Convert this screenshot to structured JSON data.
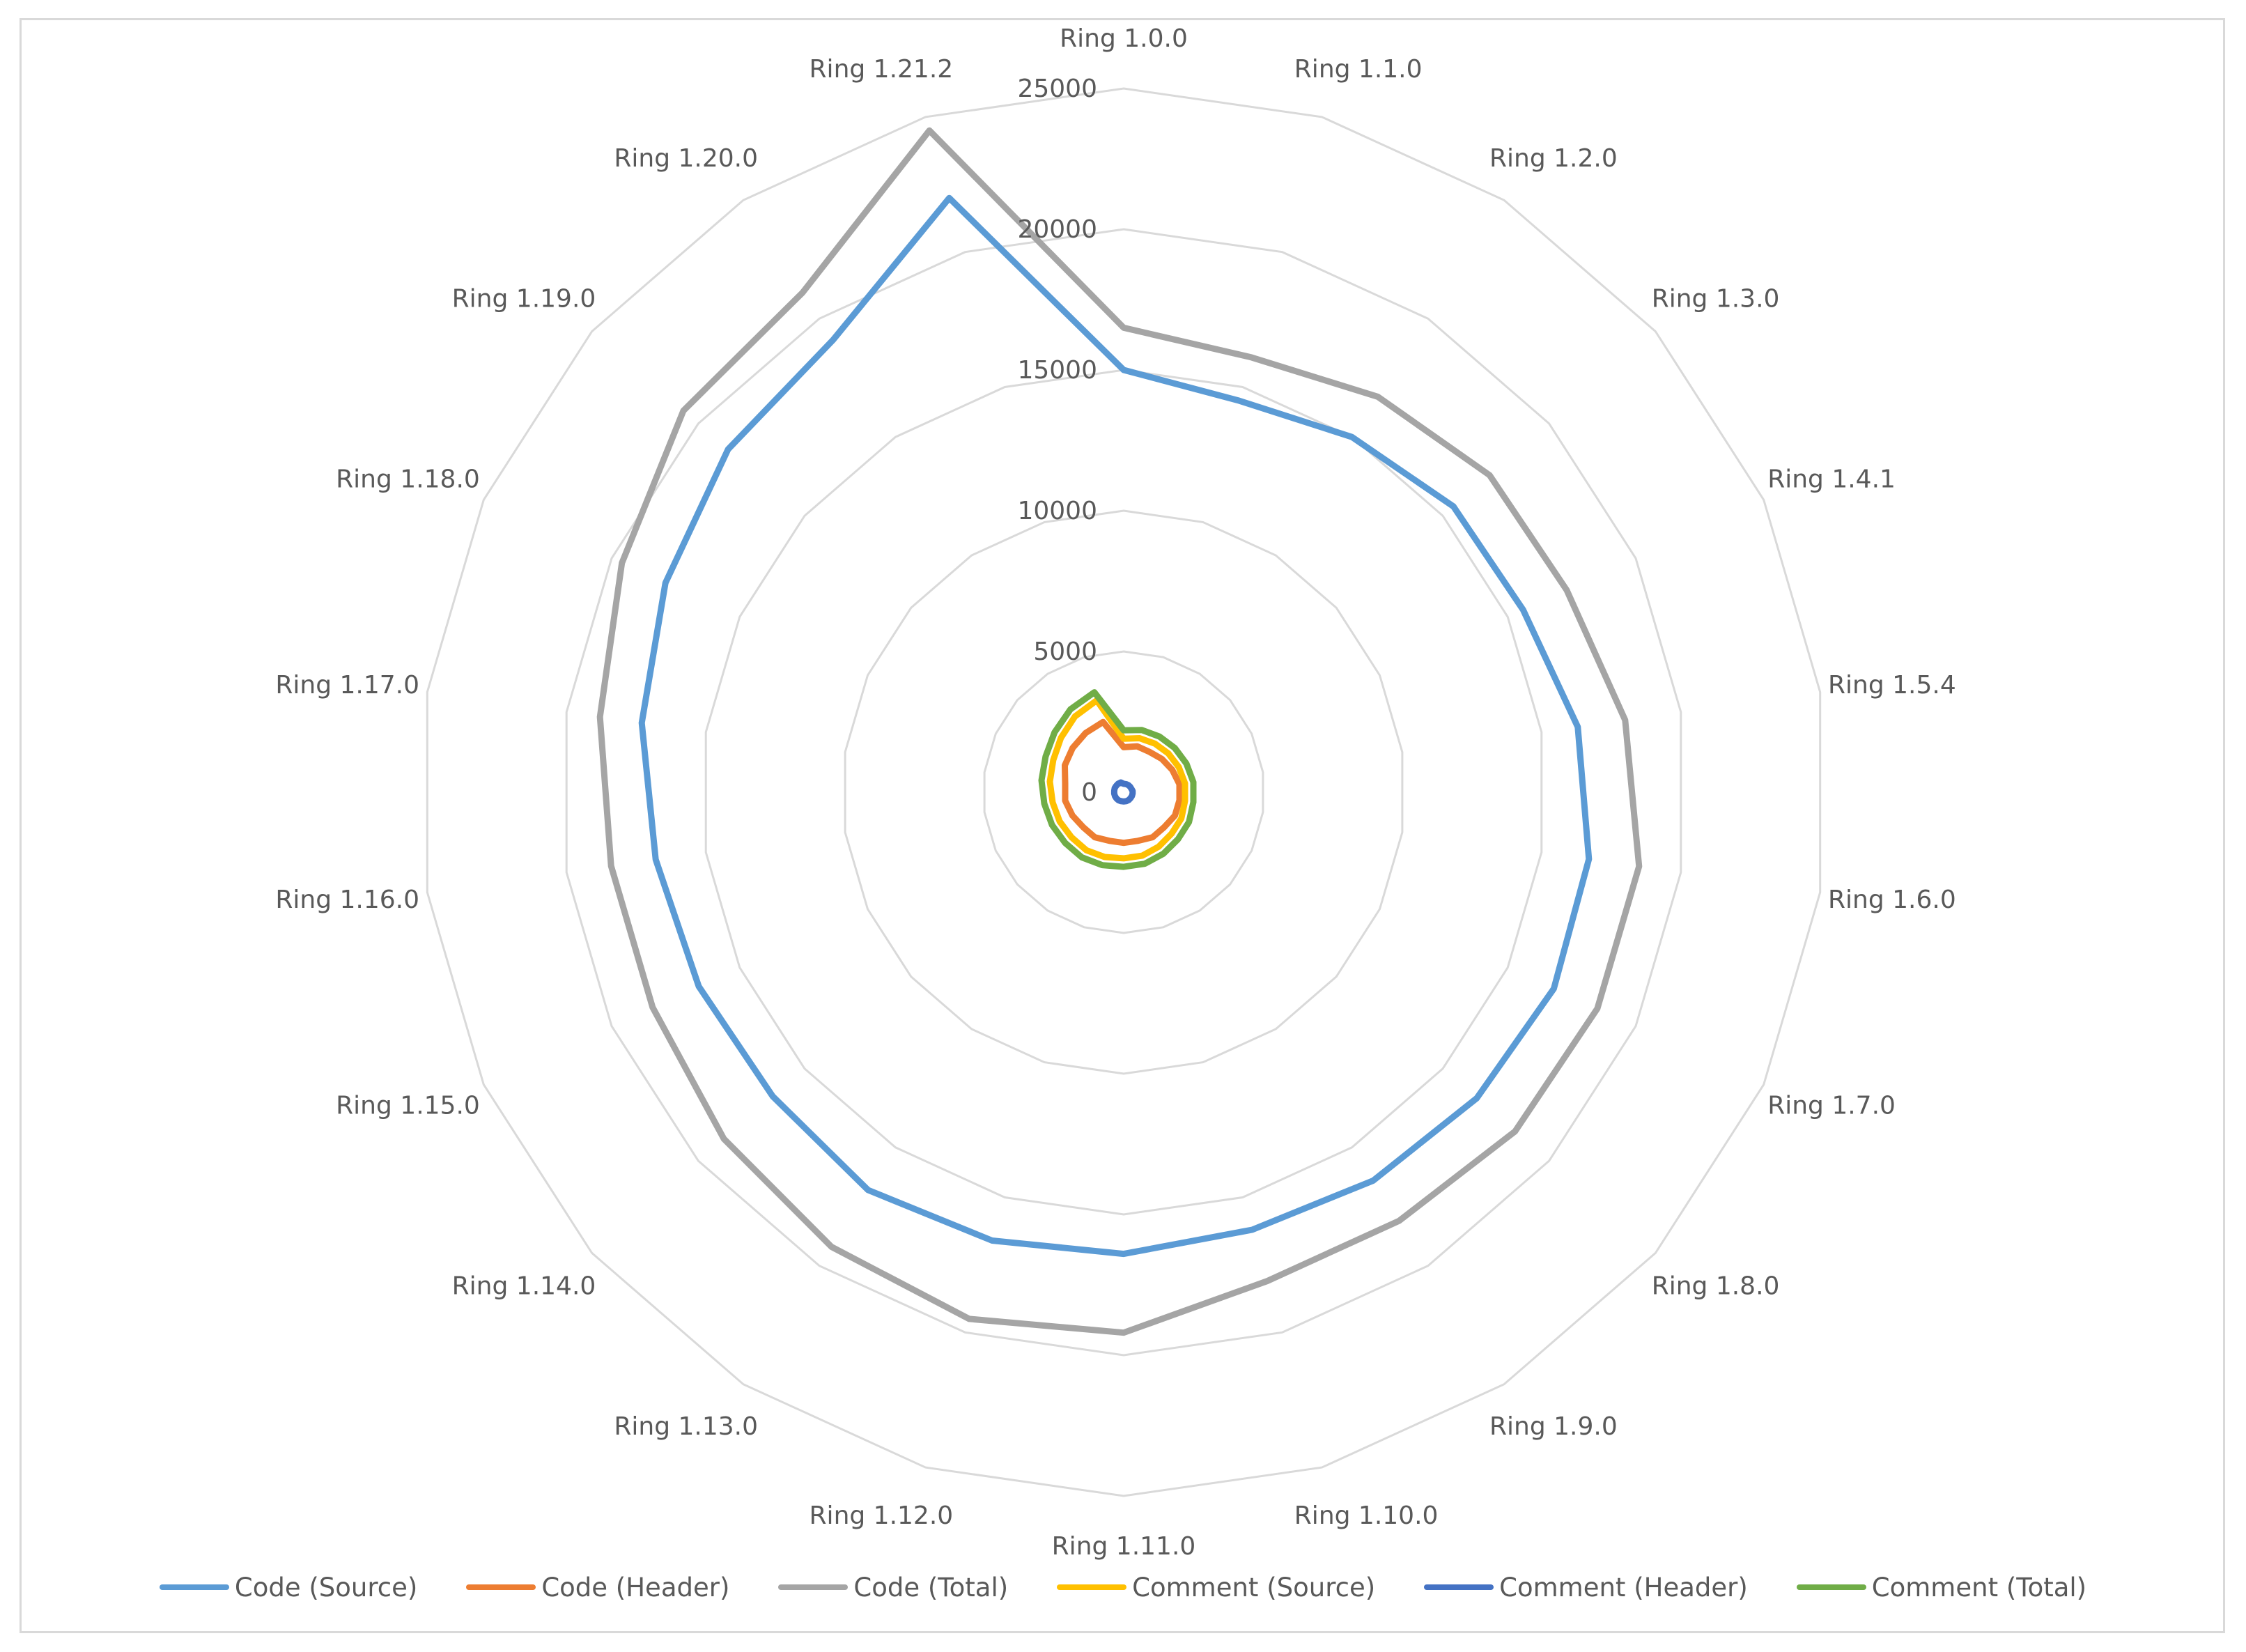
{
  "chart_data": {
    "type": "radar",
    "categories": [
      "Ring 1.0.0",
      "Ring 1.1.0",
      "Ring 1.2.0",
      "Ring 1.3.0",
      "Ring 1.4.1",
      "Ring 1.5.4",
      "Ring 1.6.0",
      "Ring 1.7.0",
      "Ring 1.8.0",
      "Ring 1.9.0",
      "Ring 1.10.0",
      "Ring 1.11.0",
      "Ring 1.12.0",
      "Ring 1.13.0",
      "Ring 1.14.0",
      "Ring 1.15.0",
      "Ring 1.16.0",
      "Ring 1.17.0",
      "Ring 1.18.0",
      "Ring 1.19.0",
      "Ring 1.20.0",
      "Ring 1.21.2"
    ],
    "r_ticks": [
      0,
      5000,
      10000,
      15000,
      20000,
      25000
    ],
    "rlim": [
      0,
      25000
    ],
    "grid": true,
    "legend_position": "bottom",
    "series": [
      {
        "name": "Code (Source)",
        "color": "#5b9bd5",
        "values": [
          15000,
          14500,
          15000,
          15500,
          15600,
          16300,
          16700,
          16800,
          16600,
          16400,
          16200,
          16400,
          16600,
          16800,
          16500,
          16600,
          16800,
          17300,
          17900,
          18600,
          19100,
          22000
        ]
      },
      {
        "name": "Code (Header)",
        "color": "#ed7d31",
        "values": [
          1600,
          1700,
          1700,
          1800,
          1900,
          2000,
          2000,
          2000,
          1900,
          1900,
          1800,
          1800,
          1800,
          1900,
          1900,
          2000,
          2100,
          2100,
          2300,
          2400,
          2500,
          2600
        ]
      },
      {
        "name": "Code (Total)",
        "color": "#a5a5a5",
        "values": [
          16500,
          16100,
          16700,
          17200,
          17300,
          18000,
          18500,
          18500,
          18400,
          18100,
          18100,
          19200,
          19500,
          19200,
          18800,
          18400,
          18400,
          18800,
          19600,
          20700,
          21100,
          24500
        ]
      },
      {
        "name": "Comment (Source)",
        "color": "#ffc000",
        "values": [
          1900,
          2000,
          2050,
          2100,
          2150,
          2200,
          2200,
          2250,
          2250,
          2300,
          2350,
          2350,
          2400,
          2450,
          2450,
          2500,
          2550,
          2650,
          2750,
          2950,
          3200,
          3400
        ]
      },
      {
        "name": "Comment (Header)",
        "color": "#4472c4",
        "values": [
          300,
          300,
          300,
          300,
          300,
          320,
          320,
          320,
          320,
          330,
          330,
          330,
          330,
          340,
          340,
          340,
          340,
          340,
          350,
          350,
          360,
          360
        ]
      },
      {
        "name": "Comment (Total)",
        "color": "#70ad47",
        "values": [
          2200,
          2300,
          2350,
          2400,
          2450,
          2500,
          2500,
          2550,
          2550,
          2600,
          2650,
          2650,
          2700,
          2750,
          2750,
          2800,
          2850,
          2950,
          3050,
          3250,
          3500,
          3700
        ]
      }
    ]
  }
}
